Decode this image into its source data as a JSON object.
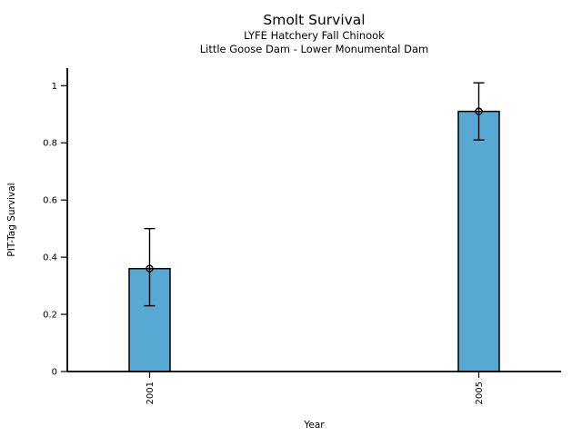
{
  "figure": {
    "background_color": "#ffffff",
    "axis_color": "#000000"
  },
  "chart_data": {
    "type": "bar",
    "title": "Smolt Survival",
    "subtitle1": "LYFE Hatchery Fall Chinook",
    "subtitle2": "Little Goose Dam - Lower Monumental Dam",
    "xlabel": "Year",
    "ylabel": "PIT-Tag Survival",
    "categories": [
      "2001",
      "2005"
    ],
    "values": [
      0.36,
      0.91
    ],
    "error_low": [
      0.23,
      0.81
    ],
    "error_high": [
      0.5,
      1.01
    ],
    "yticks": [
      0,
      0.2,
      0.4,
      0.6,
      0.8,
      1
    ],
    "ytick_labels": [
      "0",
      "0.2",
      "0.4",
      "0.6",
      "0.8",
      "1"
    ],
    "ylim": [
      0,
      1.06
    ],
    "x_axis_range_years": [
      2000,
      2006
    ],
    "grid": false,
    "legend": "none",
    "marker": "open-circle",
    "bar_color": "#58A8D4",
    "bar_edge_color": "#000000",
    "error_bar_color": "#000000"
  }
}
